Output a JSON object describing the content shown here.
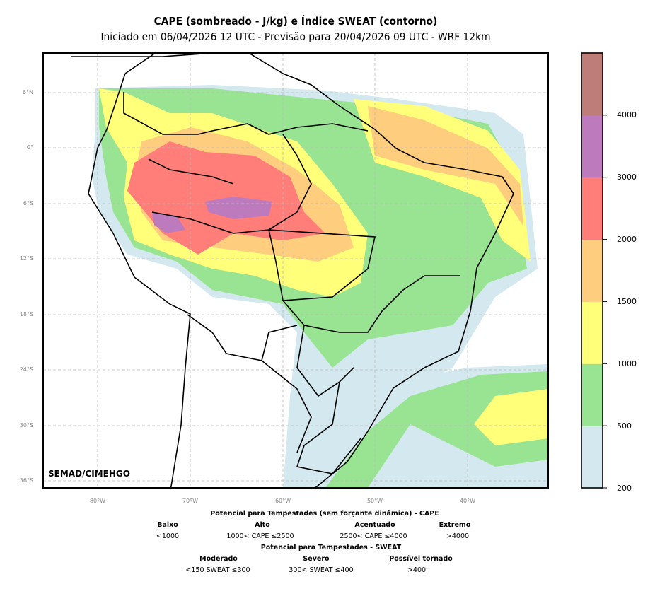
{
  "title": "CAPE (sombreado - J/kg) e Índice SWEAT (contorno)",
  "subtitle": "Iniciado em 06/04/2026 12 UTC - Previsão para 20/04/2026 09 UTC - WRF 12km",
  "credit": "SEMAD/CIMEHGO",
  "lat_labels": [
    "6°N",
    "0°",
    "6°S",
    "12°S",
    "18°S",
    "24°S",
    "30°S",
    "36°S"
  ],
  "lon_labels": [
    "80°W",
    "70°W",
    "60°W",
    "50°W",
    "40°W"
  ],
  "colorbar": {
    "ticks": [
      "200",
      "500",
      "1000",
      "1500",
      "2000",
      "3000",
      "4000"
    ],
    "colors": [
      "#d4e9ef",
      "#98e492",
      "#ffff7a",
      "#ffcd7e",
      "#ff7e7a",
      "#bd7abd",
      "#bf7d7a"
    ]
  },
  "legend": {
    "cape_title": "Potencial para Tempestades (sem forçante dinâmica) - CAPE",
    "cape": [
      {
        "label": "Baixo",
        "range": "<1000"
      },
      {
        "label": "Alto",
        "range": "1000< CAPE ≤2500"
      },
      {
        "label": "Acentuado",
        "range": "2500< CAPE ≤4000"
      },
      {
        "label": "Extremo",
        "range": ">4000"
      }
    ],
    "sweat_title": "Potencial para Tempestades - SWEAT",
    "sweat": [
      {
        "label": "Moderado",
        "range": "<150 SWEAT ≤300"
      },
      {
        "label": "Severo",
        "range": "300< SWEAT ≤400"
      },
      {
        "label": "Possível tornado",
        "range": ">400"
      }
    ]
  }
}
